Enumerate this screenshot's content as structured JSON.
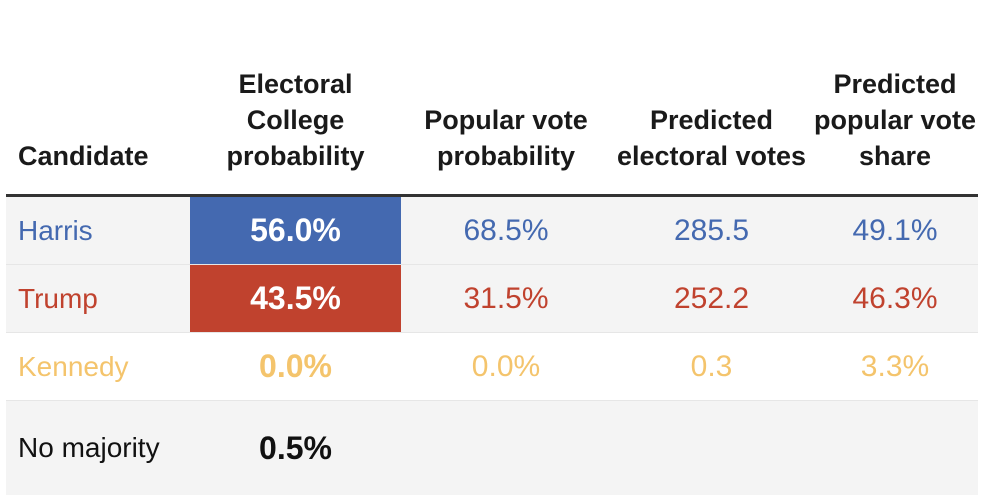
{
  "chart_data": {
    "type": "table",
    "title": "",
    "columns": [
      "Candidate",
      "Electoral College probability",
      "Popular vote probability",
      "Predicted electoral votes",
      "Predicted popular vote share"
    ],
    "rows": [
      {
        "candidate": "Harris",
        "electoral_college_probability": "56.0%",
        "popular_vote_probability": "68.5%",
        "predicted_electoral_votes": "285.5",
        "predicted_popular_vote_share": "49.1%",
        "color": "#4469b0"
      },
      {
        "candidate": "Trump",
        "electoral_college_probability": "43.5%",
        "popular_vote_probability": "31.5%",
        "predicted_electoral_votes": "252.2",
        "predicted_popular_vote_share": "46.3%",
        "color": "#c0422e"
      },
      {
        "candidate": "Kennedy",
        "electoral_college_probability": "0.0%",
        "popular_vote_probability": "0.0%",
        "predicted_electoral_votes": "0.3",
        "predicted_popular_vote_share": "3.3%",
        "color": "#f4c46c"
      },
      {
        "candidate": "No majority",
        "electoral_college_probability": "0.5%",
        "popular_vote_probability": "",
        "predicted_electoral_votes": "",
        "predicted_popular_vote_share": "",
        "color": "#111111"
      }
    ]
  }
}
